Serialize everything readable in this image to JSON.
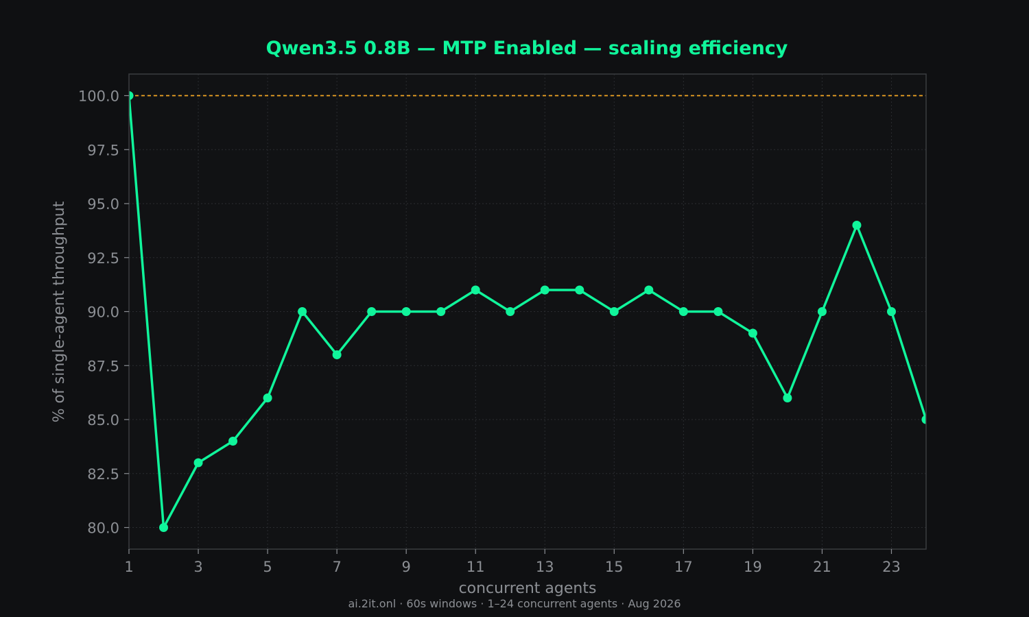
{
  "colors": {
    "background": "#0f1012",
    "accent": "#10f59b",
    "reference": "#f5a623",
    "muted": "#8c8f94",
    "frame": "#3a3c40",
    "grid": "#2a2c30"
  },
  "footnote": "ai.2it.onl · 60s windows · 1–24 concurrent agents · Aug 2026",
  "chart_data": {
    "type": "line",
    "title": "Qwen3.5 0.8B — MTP Enabled — scaling efficiency",
    "xlabel": "concurrent agents",
    "ylabel": "% of single-agent throughput",
    "x": [
      1,
      2,
      3,
      4,
      5,
      6,
      7,
      8,
      9,
      10,
      11,
      12,
      13,
      14,
      15,
      16,
      17,
      18,
      19,
      20,
      21,
      22,
      23,
      24
    ],
    "series": [
      {
        "values": [
          100,
          80,
          83,
          84,
          86,
          90,
          88,
          90,
          90,
          90,
          91,
          90,
          91,
          91,
          90,
          91,
          90,
          90,
          89,
          86,
          90,
          94,
          90,
          85
        ]
      }
    ],
    "reference_line": {
      "y": 100,
      "style": "dashed"
    },
    "xlim": [
      1,
      24
    ],
    "ylim": [
      79,
      101
    ],
    "xticks": [
      1,
      3,
      5,
      7,
      9,
      11,
      13,
      15,
      17,
      19,
      21,
      23
    ],
    "yticks": [
      "80.0",
      "82.5",
      "85.0",
      "87.5",
      "90.0",
      "92.5",
      "95.0",
      "97.5",
      "100.0"
    ],
    "grid": true,
    "markers": true
  }
}
